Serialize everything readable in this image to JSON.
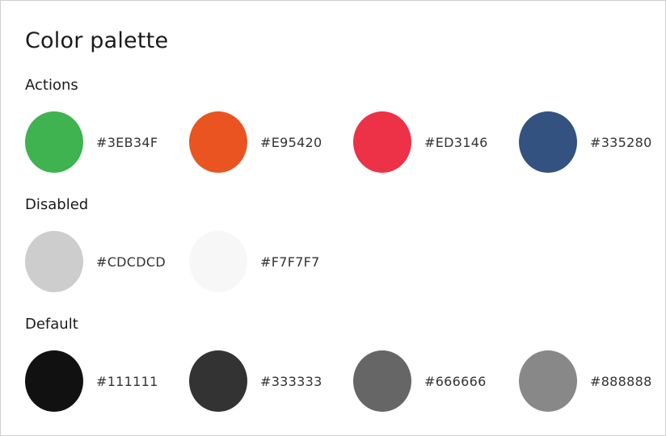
{
  "title": "Color palette",
  "sections": [
    {
      "title": "Actions",
      "swatches": [
        {
          "hex": "#3EB34F",
          "color": "#3EB34F"
        },
        {
          "hex": "#E95420",
          "color": "#E95420"
        },
        {
          "hex": "#ED3146",
          "color": "#ED3146"
        },
        {
          "hex": "#335280",
          "color": "#335280"
        }
      ]
    },
    {
      "title": "Disabled",
      "swatches": [
        {
          "hex": "#CDCDCD",
          "color": "#CDCDCD"
        },
        {
          "hex": "#F7F7F7",
          "color": "#F7F7F7"
        }
      ]
    },
    {
      "title": "Default",
      "swatches": [
        {
          "hex": "#111111",
          "color": "#111111"
        },
        {
          "hex": "#333333",
          "color": "#333333"
        },
        {
          "hex": "#666666",
          "color": "#666666"
        },
        {
          "hex": "#888888",
          "color": "#888888"
        }
      ]
    }
  ]
}
